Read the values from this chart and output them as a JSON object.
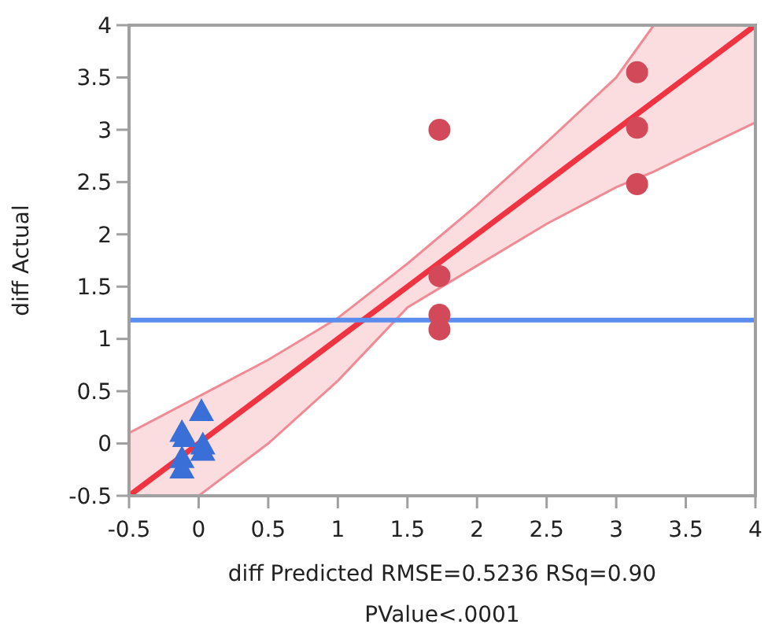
{
  "chart_data": {
    "type": "scatter",
    "xlabel": "diff Predicted RMSE=0.5236 RSq=0.90",
    "ylabel": "diff Actual",
    "annotations": [
      "PValue<.0001"
    ],
    "xlim": [
      -0.5,
      4
    ],
    "ylim": [
      -0.5,
      4
    ],
    "xticks": [
      -0.5,
      0,
      0.5,
      1,
      1.5,
      2,
      2.5,
      3,
      3.5,
      4
    ],
    "yticks": [
      -0.5,
      0,
      0.5,
      1,
      1.5,
      2,
      2.5,
      3,
      3.5,
      4
    ],
    "grid": false,
    "ref_lines": [
      {
        "axis": "y",
        "value": 1.18,
        "color": "#5b8def"
      }
    ],
    "series": [
      {
        "type": "line",
        "color": "#ef3340",
        "marker": "none",
        "x": [
          -0.5,
          0,
          0.5,
          1,
          1.5,
          2,
          2.5,
          3,
          3.27,
          3.5,
          4
        ],
        "values": [
          -0.5,
          0,
          0.5,
          1,
          1.5,
          2,
          2.5,
          3,
          3.27,
          3.5,
          4
        ],
        "lower": [
          -0.5,
          -0.5,
          0.0,
          0.6,
          1.3,
          1.7,
          2.1,
          2.45,
          2.6,
          2.75,
          3.07
        ],
        "upper": [
          0.1,
          0.45,
          0.8,
          1.2,
          1.72,
          2.28,
          2.88,
          3.5,
          4,
          4,
          4
        ]
      },
      {
        "color": "#d24a5a",
        "marker": "circle",
        "x": [
          1.73,
          1.73,
          1.73,
          1.73,
          3.15,
          3.15,
          3.15
        ],
        "values": [
          3.0,
          1.6,
          1.23,
          1.09,
          3.55,
          3.02,
          2.48
        ]
      },
      {
        "color": "#3a6fd8",
        "marker": "triangle",
        "x": [
          -0.12,
          -0.12,
          -0.12,
          -0.1,
          0.02,
          0.03,
          0.03
        ],
        "values": [
          0.1,
          -0.15,
          -0.25,
          0.05,
          0.3,
          -0.02,
          -0.08
        ]
      }
    ]
  }
}
